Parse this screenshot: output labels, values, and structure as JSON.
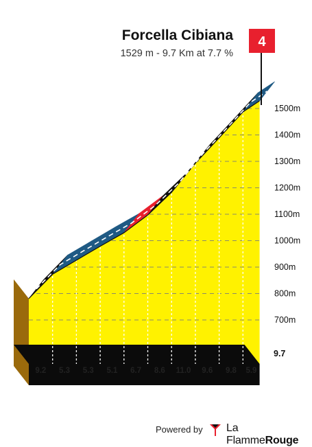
{
  "header": {
    "title": "Forcella Cibiana",
    "subtitle": "1529 m - 9.7 Km at 7.7 %"
  },
  "category_badge": {
    "label": "4",
    "color": "#e8202e"
  },
  "chart_data": {
    "type": "area",
    "ylabel_unit": "m",
    "y_ticks": [
      "1500m",
      "1400m",
      "1300m",
      "1200m",
      "1100m",
      "1000m",
      "900m",
      "800m",
      "700m"
    ],
    "y_tick_values": [
      1500,
      1400,
      1300,
      1200,
      1100,
      1000,
      900,
      800,
      700
    ],
    "km_markers": [
      "1",
      "2",
      "3",
      "4",
      "5",
      "6",
      "7",
      "8",
      "9"
    ],
    "total_distance_label": "9.7",
    "segment_gradients": [
      "9.2",
      "5.3",
      "5.3",
      "5.1",
      "6.7",
      "8.6",
      "11.0",
      "9.6",
      "9.8",
      "5.9"
    ],
    "segments": [
      {
        "from_km": 0,
        "to_km": 1,
        "gradient": 9.2,
        "color": "#111111"
      },
      {
        "from_km": 1,
        "to_km": 2,
        "gradient": 5.3,
        "color": "#1f5a84"
      },
      {
        "from_km": 2,
        "to_km": 3,
        "gradient": 5.3,
        "color": "#1f5a84"
      },
      {
        "from_km": 3,
        "to_km": 4,
        "gradient": 5.1,
        "color": "#1f5a84"
      },
      {
        "from_km": 4,
        "to_km": 5,
        "gradient": 6.7,
        "color": "#e8202e"
      },
      {
        "from_km": 5,
        "to_km": 6,
        "gradient": 8.6,
        "color": "#111111"
      },
      {
        "from_km": 6,
        "to_km": 7,
        "gradient": 11.0,
        "color": "#111111"
      },
      {
        "from_km": 7,
        "to_km": 8,
        "gradient": 9.6,
        "color": "#111111"
      },
      {
        "from_km": 8,
        "to_km": 9,
        "gradient": 9.8,
        "color": "#111111"
      },
      {
        "from_km": 9,
        "to_km": 9.7,
        "gradient": 5.9,
        "color": "#1f5a84"
      }
    ],
    "profile_x_km": [
      0,
      1,
      2,
      3,
      4,
      5,
      6,
      7,
      8,
      9,
      9.7
    ],
    "profile_elevation_m": [
      781,
      873,
      926,
      979,
      1030,
      1097,
      1183,
      1293,
      1389,
      1487,
      1529
    ],
    "fill_color": "#fff200",
    "grid": true
  },
  "footer": {
    "powered_by": "Powered by",
    "brand_regular": "La Flamme",
    "brand_bold": "Rouge"
  }
}
